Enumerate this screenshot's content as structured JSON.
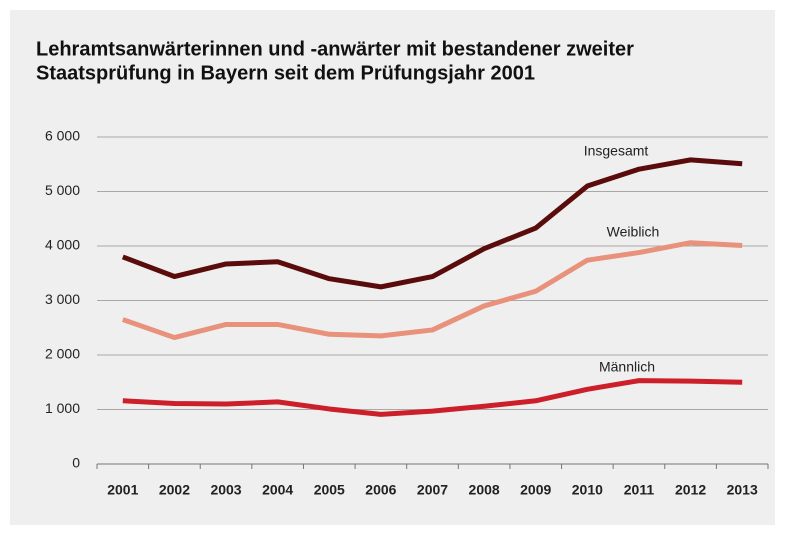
{
  "chart_data": {
    "type": "line",
    "title": [
      "Lehramtsanwärterinnen und -anwärter mit bestandener zweiter",
      "Staatsprüfung in Bayern seit dem Prüfungsjahr 2001"
    ],
    "categories": [
      "2001",
      "2002",
      "2003",
      "2004",
      "2005",
      "2006",
      "2007",
      "2008",
      "2009",
      "2010",
      "2011",
      "2012",
      "2013"
    ],
    "series": [
      {
        "name": "Insgesamt",
        "color": "#5a0c0c",
        "values": [
          3800,
          3440,
          3670,
          3710,
          3400,
          3250,
          3440,
          3950,
          4330,
          5100,
          5410,
          5580,
          5510
        ]
      },
      {
        "name": "Weiblich",
        "color": "#e8917b",
        "values": [
          2650,
          2320,
          2560,
          2560,
          2380,
          2350,
          2460,
          2900,
          3170,
          3740,
          3880,
          4060,
          4010
        ]
      },
      {
        "name": "Männlich",
        "color": "#cc1f2a",
        "values": [
          1160,
          1110,
          1100,
          1140,
          1010,
          910,
          970,
          1060,
          1160,
          1370,
          1530,
          1520,
          1500
        ]
      }
    ],
    "ylim": [
      0,
      6000
    ],
    "yticks": [
      0,
      {
        "value": 1000,
        "label": "1 000"
      },
      {
        "value": 2000,
        "label": "2 000"
      },
      {
        "value": 3000,
        "label": "3 000"
      },
      {
        "value": 4000,
        "label": "4 000"
      },
      {
        "value": 5000,
        "label": "5 000"
      },
      {
        "value": 6000,
        "label": "6 000"
      }
    ],
    "grid": true
  }
}
